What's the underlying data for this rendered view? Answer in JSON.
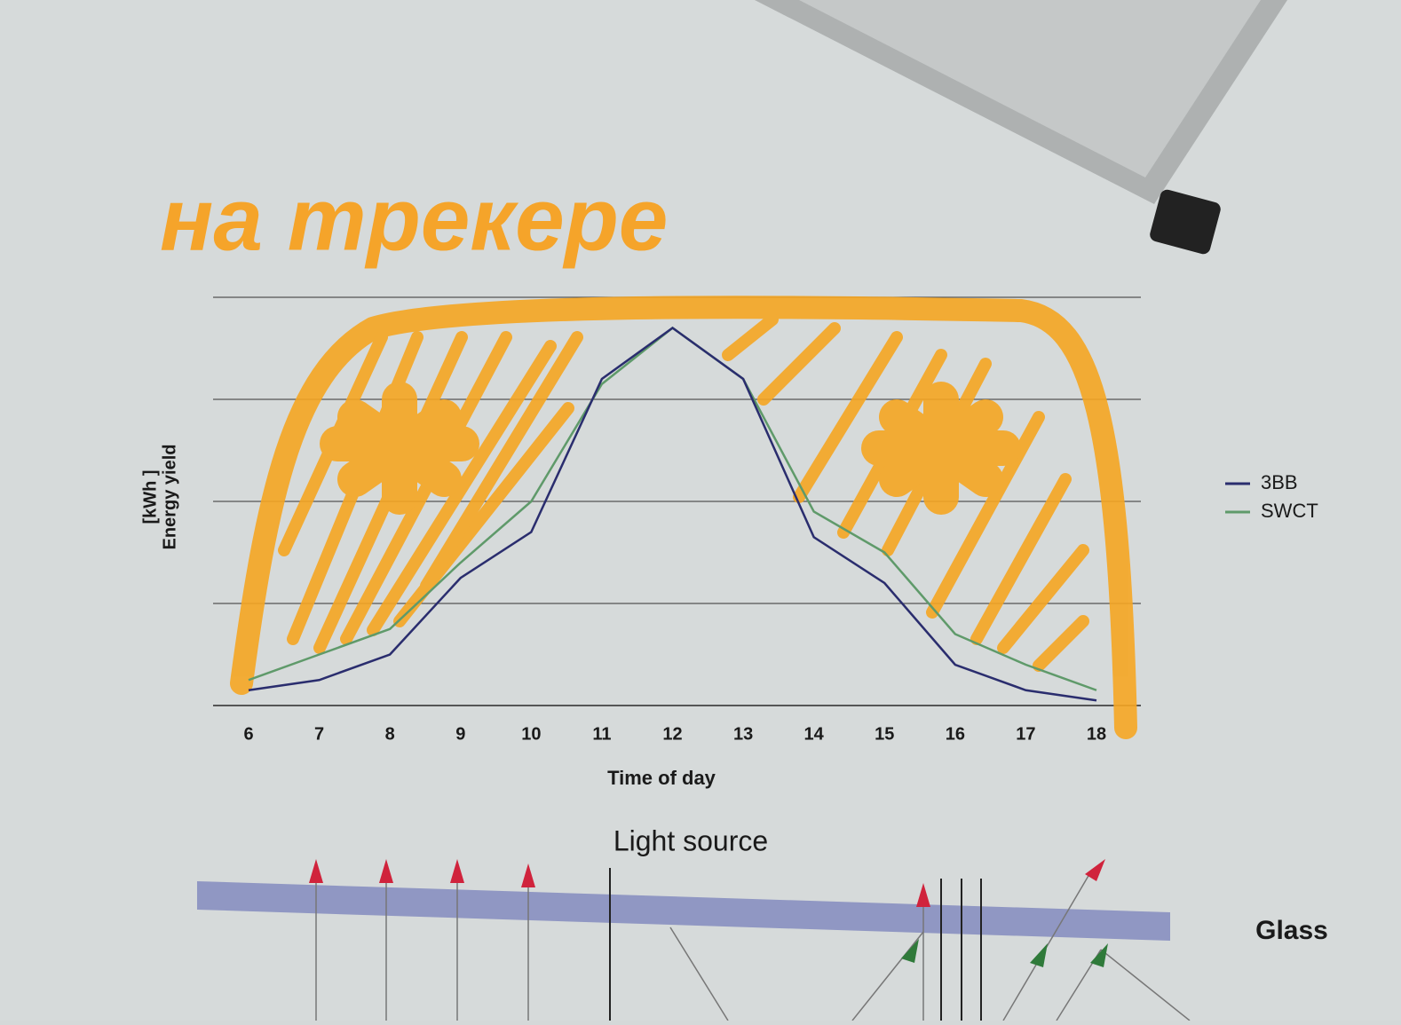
{
  "chart_data": {
    "type": "line",
    "annotations": [
      "на трекере",
      "Light source",
      "Glass"
    ],
    "x_label": "Time of day",
    "y_label": "Energy yield",
    "y_unit": "[kWh ]",
    "x": [
      6,
      7,
      8,
      9,
      10,
      11,
      12,
      13,
      14,
      15,
      16,
      17,
      18
    ],
    "xlim": [
      6,
      18
    ],
    "xticks": [
      6,
      7,
      8,
      9,
      10,
      11,
      12,
      13,
      14,
      15,
      16,
      17,
      18
    ],
    "ylim": [
      0,
      4
    ],
    "yticks": [
      0,
      1,
      2,
      3,
      4
    ],
    "ytick_labels": false,
    "grid": true,
    "legend": "right",
    "series": [
      {
        "name": "3BB",
        "color": "#2a2d6e",
        "values": [
          0.15,
          0.25,
          0.5,
          1.25,
          1.7,
          3.2,
          3.7,
          3.2,
          1.65,
          1.2,
          0.4,
          0.15,
          0.05
        ]
      },
      {
        "name": "SWCT",
        "color": "#5f9a6a",
        "values": [
          0.25,
          0.5,
          0.75,
          1.4,
          2.0,
          3.15,
          3.7,
          3.2,
          1.9,
          1.5,
          0.7,
          0.4,
          0.15
        ]
      }
    ]
  }
}
